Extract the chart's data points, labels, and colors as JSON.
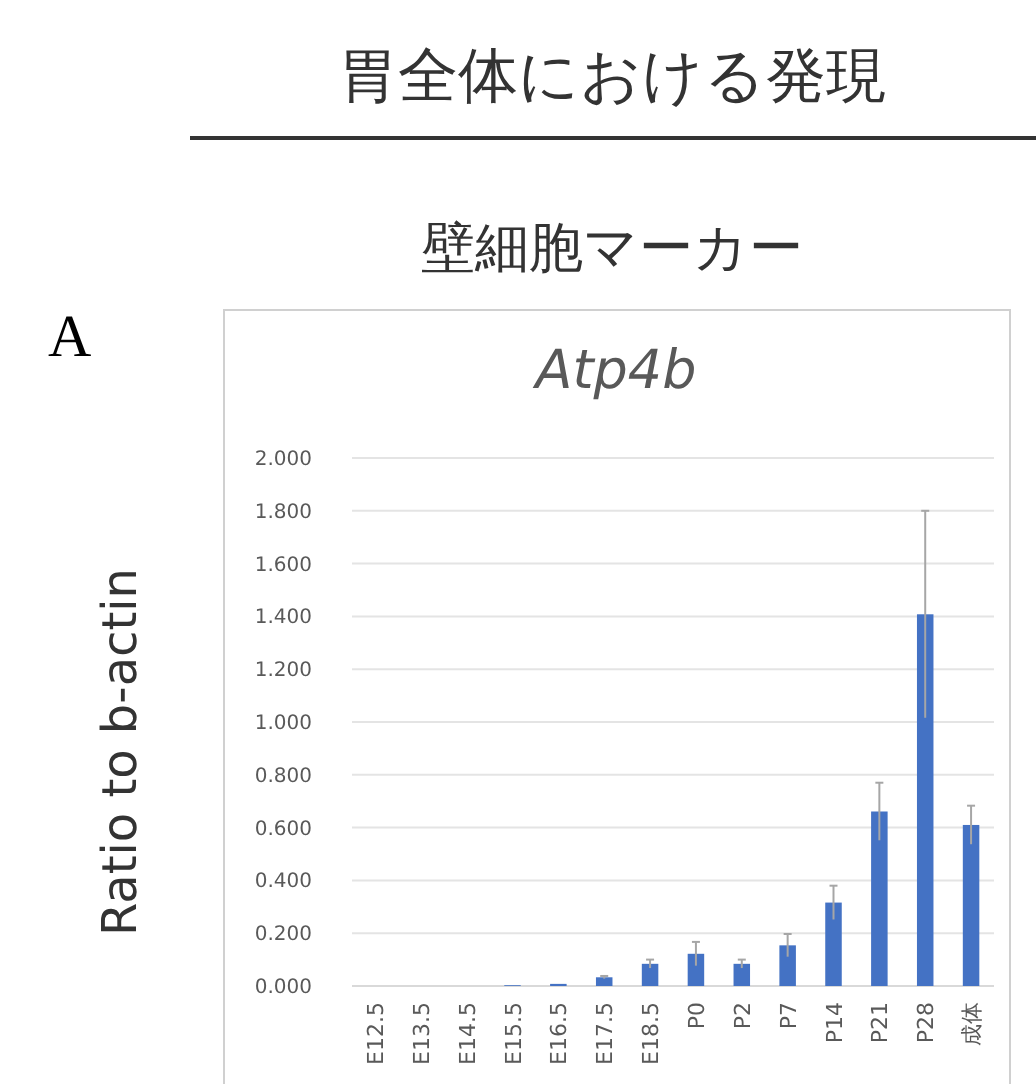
{
  "chart_data": {
    "type": "bar",
    "title": "Atp4b",
    "ylabel": "Ratio to b-actin",
    "annotations": [
      "胃全体における発現",
      "壁細胞マーカー",
      "A"
    ],
    "categories": [
      "E12.5",
      "E13.5",
      "E14.5",
      "E15.5",
      "E16.5",
      "E17.5",
      "E18.5",
      "P0",
      "P2",
      "P7",
      "P14",
      "P21",
      "P28",
      "成体"
    ],
    "values": [
      0,
      0,
      0,
      0.003,
      0.008,
      0.033,
      0.084,
      0.122,
      0.084,
      0.154,
      0.316,
      0.661,
      1.408,
      0.61
    ],
    "errors": [
      null,
      null,
      null,
      null,
      null,
      0.005,
      0.016,
      0.045,
      0.016,
      0.043,
      0.064,
      0.109,
      0.392,
      0.073
    ],
    "color": "#4472c4",
    "ylim": [
      0,
      2
    ],
    "yticks": [
      {
        "value": 0,
        "label": "0.000"
      },
      {
        "value": 0.2,
        "label": "0.200"
      },
      {
        "value": 0.4,
        "label": "0.400"
      },
      {
        "value": 0.6,
        "label": "0.600"
      },
      {
        "value": 0.8,
        "label": "0.800"
      },
      {
        "value": 1,
        "label": "1.000"
      },
      {
        "value": 1.2,
        "label": "1.200"
      },
      {
        "value": 1.4,
        "label": "1.400"
      },
      {
        "value": 1.6,
        "label": "1.600"
      },
      {
        "value": 1.8,
        "label": "1.800"
      },
      {
        "value": 2,
        "label": "2.000"
      }
    ],
    "grid": "y"
  }
}
